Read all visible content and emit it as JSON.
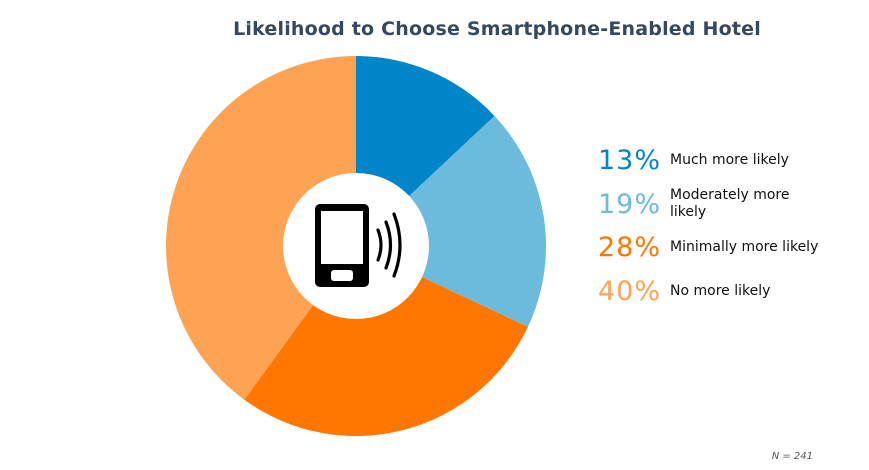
{
  "chart_data": {
    "type": "pie",
    "title": "Likelihood to Choose Smartphone-Enabled Hotel",
    "categories": [
      "Much more likely",
      "Moderately more likely",
      "Minimally more likely",
      "No more likely"
    ],
    "values": [
      13,
      19,
      28,
      40
    ],
    "value_labels": [
      "13%",
      "19%",
      "28%",
      "40%"
    ],
    "colors": [
      "#0086c8",
      "#6cbadc",
      "#ff7600",
      "#fda353"
    ],
    "legend_position": "right",
    "center_icon": "smartphone-nfc-icon",
    "note": "N = 241"
  }
}
